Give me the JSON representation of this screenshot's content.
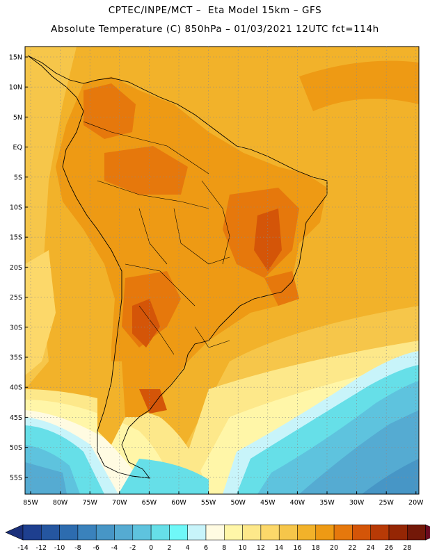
{
  "header": {
    "line1": "CPTEC/INPE/MCT –  Eta Model 15km – GFS",
    "line2": "Absolute Temperature (C) 850hPa – 01/03/2021 12UTC fct=114h"
  },
  "axes": {
    "lat_labels": [
      "15N",
      "10N",
      "5N",
      "EQ",
      "5S",
      "10S",
      "15S",
      "20S",
      "25S",
      "30S",
      "35S",
      "40S",
      "45S",
      "50S",
      "55S"
    ],
    "lon_labels": [
      "85W",
      "80W",
      "75W",
      "70W",
      "65W",
      "60W",
      "55W",
      "50W",
      "45W",
      "40W",
      "35W",
      "30W",
      "25W",
      "20W"
    ]
  },
  "colorbar": {
    "labels": [
      "-14",
      "-12",
      "-10",
      "-8",
      "-6",
      "-4",
      "-2",
      "0",
      "2",
      "4",
      "6",
      "8",
      "10",
      "12",
      "14",
      "16",
      "18",
      "20",
      "22",
      "24",
      "26",
      "28"
    ],
    "colors": [
      "#1e3f8f",
      "#2556a0",
      "#2d6caf",
      "#3a82bc",
      "#4796c6",
      "#55abd2",
      "#5ec3de",
      "#66dfe8",
      "#6ff8f8",
      "#c8f4fa",
      "#fffbe2",
      "#fff6a8",
      "#fde88a",
      "#fcd86a",
      "#f6c64a",
      "#f2b22a",
      "#ee9a14",
      "#e6780c",
      "#d45508",
      "#b83a06",
      "#952604",
      "#731808"
    ],
    "left_arrow_color": "#1a2f7a",
    "right_arrow_color": "#6a0a20"
  },
  "colors": {
    "ocean_north": "#f6bd3c",
    "land_warm": "#ee9a14",
    "land_hot": "#e6780c",
    "cold_water": "#4fb0d6",
    "cool_water": "#66dfe8",
    "coast": "#000000"
  }
}
